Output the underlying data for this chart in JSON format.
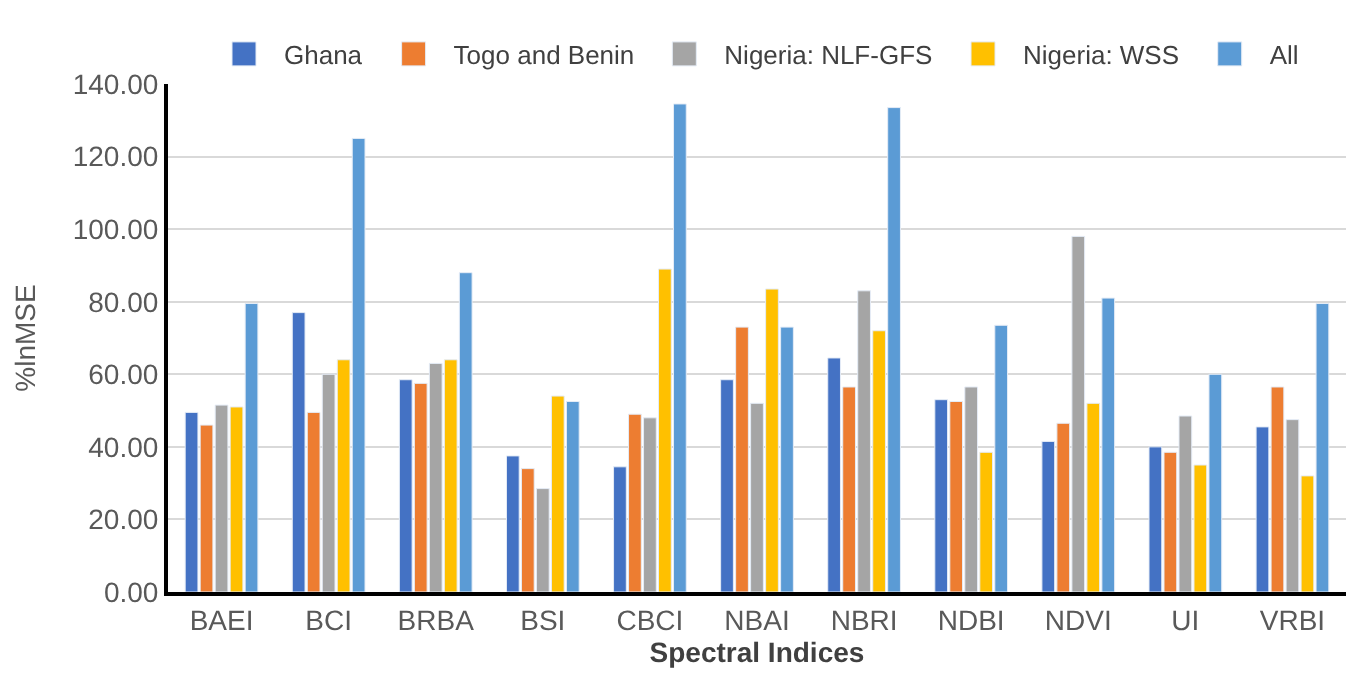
{
  "chart_data": {
    "type": "bar",
    "xlabel": "Spectral Indices",
    "ylabel": "%lnMSE",
    "categories": [
      "BAEI",
      "BCI",
      "BRBA",
      "BSI",
      "CBCI",
      "NBAI",
      "NBRI",
      "NDBI",
      "NDVI",
      "UI",
      "VRBI"
    ],
    "series": [
      {
        "name": "Ghana",
        "color": "#4472c4",
        "values": [
          49.5,
          77,
          58.5,
          37.5,
          34.5,
          58.5,
          64.5,
          53,
          41.5,
          40,
          45.5
        ]
      },
      {
        "name": "Togo and Benin",
        "color": "#ed7d31",
        "values": [
          46,
          49.5,
          57.5,
          34,
          49,
          73,
          56.5,
          52.5,
          46.5,
          38.5,
          56.5
        ]
      },
      {
        "name": "Nigeria: NLF-GFS",
        "color": "#a5a5a5",
        "values": [
          51.5,
          60,
          63,
          28.5,
          48,
          52,
          83,
          56.5,
          98,
          48.5,
          47.5
        ]
      },
      {
        "name": "Nigeria: WSS",
        "color": "#ffc000",
        "values": [
          51,
          64,
          64,
          54,
          89,
          83.5,
          72,
          38.5,
          52,
          35,
          32
        ]
      },
      {
        "name": "All",
        "color": "#5b9bd5",
        "values": [
          79.5,
          125,
          88,
          52.5,
          134.5,
          73,
          133.5,
          73.5,
          81,
          60,
          79.5
        ]
      }
    ],
    "ylim": [
      0,
      140
    ],
    "yticks": [
      {
        "value": 0,
        "label": "0.00"
      },
      {
        "value": 20,
        "label": "20.00"
      },
      {
        "value": 40,
        "label": "40.00"
      },
      {
        "value": 60,
        "label": "60.00"
      },
      {
        "value": 80,
        "label": "80.00"
      },
      {
        "value": 100,
        "label": "100.00"
      },
      {
        "value": 120,
        "label": "120.00"
      },
      {
        "value": 140,
        "label": "140.00"
      }
    ],
    "grid": "y",
    "legend": "top"
  }
}
